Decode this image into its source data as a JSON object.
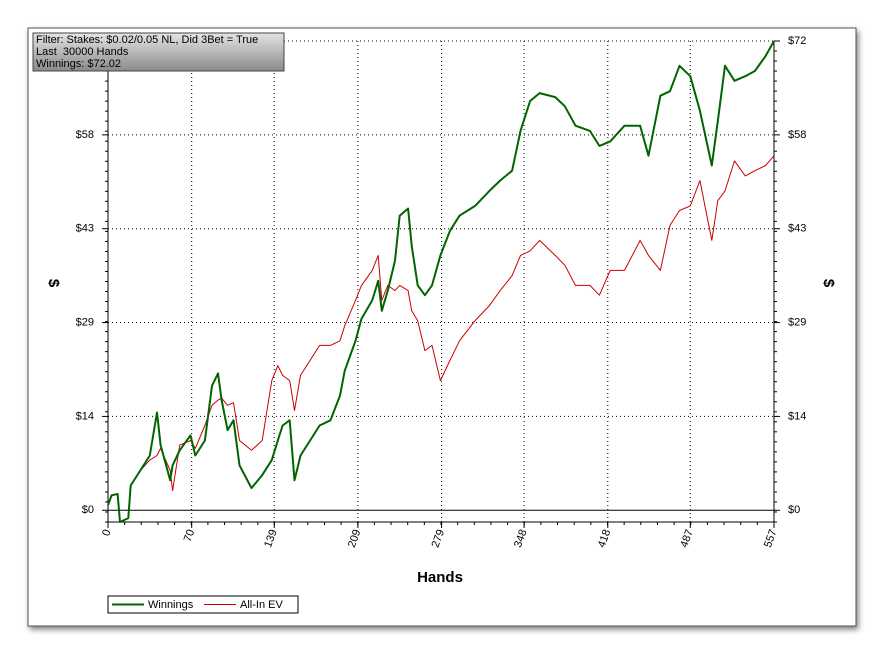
{
  "chart_data": {
    "type": "line",
    "info": [
      "Filter: Stakes: $0.02/0.05 NL, Did 3Bet = True",
      "Last  30000 Hands",
      "Winnings: $72.02"
    ],
    "xlabel": "Hands",
    "ylabel": "$",
    "x": [
      0,
      3,
      8,
      10,
      17,
      19,
      27,
      35,
      41,
      44,
      52,
      54,
      60,
      69,
      73,
      81,
      87,
      92,
      95,
      100,
      105,
      110,
      120,
      129,
      137,
      142,
      146,
      152,
      156,
      161,
      169,
      177,
      186,
      194,
      198,
      207,
      212,
      221,
      226,
      229,
      234,
      240,
      244,
      251,
      254,
      259,
      265,
      271,
      278,
      286,
      294,
      307,
      319,
      328,
      338,
      345,
      353,
      361,
      374,
      382,
      391,
      403,
      411,
      420,
      432,
      445,
      452,
      462,
      470,
      478,
      487,
      495,
      505,
      510,
      516,
      524,
      533,
      541,
      550,
      557
    ],
    "series": [
      {
        "name": "Winnings",
        "color": "#006400",
        "values": [
          0.8,
          2.3,
          2.5,
          -1.8,
          -1.2,
          3.8,
          6.1,
          8.4,
          15,
          10,
          4.6,
          6.9,
          9.2,
          11.5,
          8.4,
          10.7,
          19.1,
          21,
          16.9,
          12.3,
          13.8,
          6.9,
          3.4,
          5.4,
          7.7,
          10.7,
          13,
          13.8,
          4.6,
          8.4,
          10.7,
          13,
          13.8,
          17.6,
          21.4,
          26,
          29.4,
          32.2,
          35.2,
          30.6,
          33.7,
          38.3,
          45.2,
          46.3,
          40.6,
          34.5,
          33,
          34.5,
          39.1,
          42.9,
          45.2,
          46.7,
          49,
          50.6,
          52.1,
          58.2,
          62.8,
          64,
          63.4,
          62,
          59,
          58.2,
          55.9,
          56.6,
          59,
          59,
          54.4,
          63.6,
          64.3,
          68.2,
          66.6,
          61.3,
          52.9,
          59.7,
          68.2,
          65.9,
          66.6,
          67.4,
          69.7,
          72
        ]
      },
      {
        "name": "All-In EV",
        "color": "#cc0000",
        "values": [
          0.8,
          2.3,
          2.5,
          -1.8,
          -1.2,
          3.8,
          6.1,
          7.7,
          8.4,
          9.5,
          6.1,
          3,
          10,
          10.7,
          9.5,
          13,
          16.1,
          16.9,
          17.2,
          16.1,
          16.5,
          10.7,
          9.2,
          10.7,
          19.9,
          22.2,
          20.7,
          19.9,
          15.3,
          20.7,
          23,
          25.3,
          25.3,
          26,
          28.3,
          32.2,
          34.5,
          36.8,
          39.1,
          32.2,
          34.5,
          33.7,
          34.5,
          33.7,
          30.6,
          29.1,
          24.5,
          25.3,
          19.9,
          23,
          26,
          29.1,
          31.4,
          33.7,
          36,
          39.1,
          39.8,
          41.4,
          39.1,
          37.6,
          34.5,
          34.5,
          33,
          36.8,
          36.8,
          41.4,
          39.1,
          36.8,
          43.7,
          46,
          46.7,
          50.6,
          41.4,
          47.5,
          49,
          53.6,
          51.3,
          52.1,
          52.9,
          54.4
        ]
      }
    ],
    "xlim": [
      0,
      557
    ],
    "xticks": [
      0,
      70,
      139,
      209,
      279,
      348,
      418,
      487,
      557
    ],
    "ylim": [
      -1.8,
      72
    ],
    "yticks": [
      {
        "value": 0,
        "label": "$0"
      },
      {
        "value": 14.4,
        "label": "$14"
      },
      {
        "value": 28.8,
        "label": "$29"
      },
      {
        "value": 43.2,
        "label": "$43"
      },
      {
        "value": 57.6,
        "label": "$58"
      },
      {
        "value": 72,
        "label": "$72"
      }
    ],
    "grid": true
  }
}
